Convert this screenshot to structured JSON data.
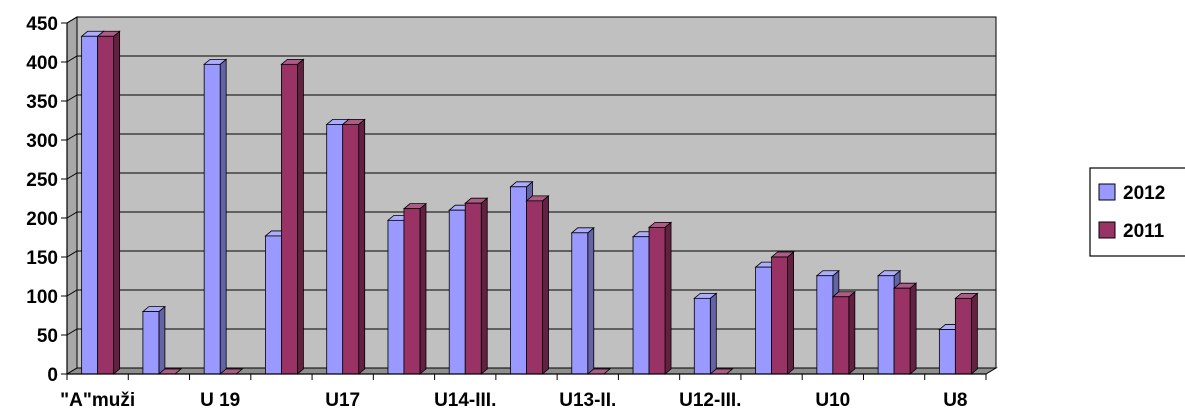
{
  "chart_data": {
    "type": "bar",
    "title": "",
    "xlabel": "",
    "ylabel": "",
    "ylim": [
      0,
      450
    ],
    "y_ticks": [
      0,
      50,
      100,
      150,
      200,
      250,
      300,
      350,
      400,
      450
    ],
    "grid": true,
    "legend_position": "right",
    "categories": [
      "\"A\"muži",
      "",
      "U 19",
      "",
      "U17",
      "",
      "U14-III.",
      "",
      "U13-II.",
      "",
      "U12-III.",
      "",
      "U10",
      "",
      "U8"
    ],
    "series": [
      {
        "name": "2012",
        "color": "#9999ff",
        "values": [
          433,
          80,
          397,
          177,
          320,
          197,
          210,
          240,
          181,
          176,
          97,
          137,
          126,
          126,
          57
        ]
      },
      {
        "name": "2011",
        "color": "#993366",
        "values": [
          433,
          0,
          0,
          397,
          320,
          212,
          219,
          222,
          0,
          188,
          0,
          150,
          99,
          110,
          97
        ]
      }
    ],
    "colors": {
      "plot_background": "#c0c0c0",
      "gridline": "#000000"
    }
  }
}
